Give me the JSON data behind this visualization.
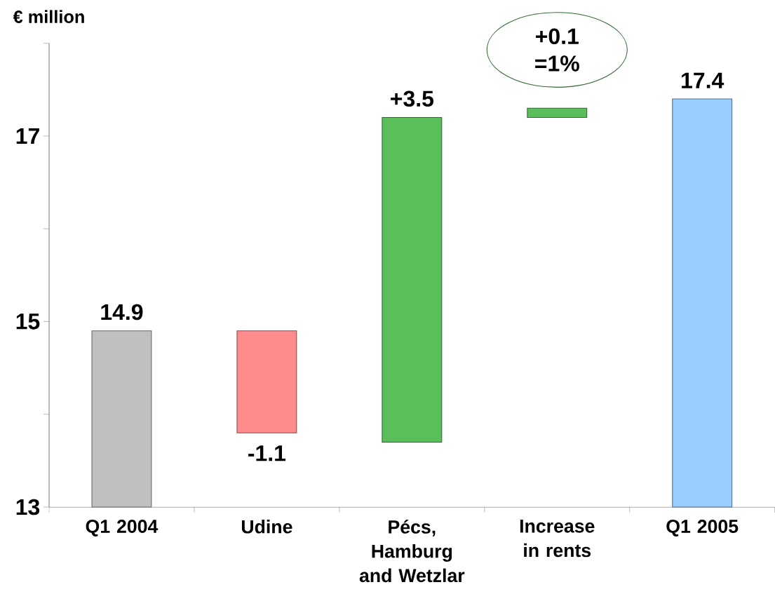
{
  "chart_data": {
    "type": "bar",
    "ylabel": "€ million",
    "categories": [
      "Q1 2004",
      "Udine",
      "Pécs, Hamburg and Wetzlar",
      "Increase in rents",
      "Q1 2005"
    ],
    "values": [
      1.9,
      -1.1,
      3.5,
      0.1,
      4.4
    ],
    "base": [
      13,
      14.9,
      13.7,
      17.2,
      13
    ],
    "colors": [
      "#c0c0c0",
      "#ff8c8c",
      "#5abf5a",
      "#5abf5a",
      "#99ccff"
    ],
    "value_labels": [
      "14.9",
      "-1.1",
      "+3.5",
      "+0.1",
      "17.4"
    ],
    "annotations": [
      "=1%"
    ],
    "ylim": [
      13,
      18
    ],
    "yticks": [
      13,
      {
        "value": 14,
        "label": null
      },
      15,
      {
        "value": 16,
        "label": null
      },
      17,
      {
        "value": 18,
        "label": null
      }
    ],
    "grid": false
  }
}
